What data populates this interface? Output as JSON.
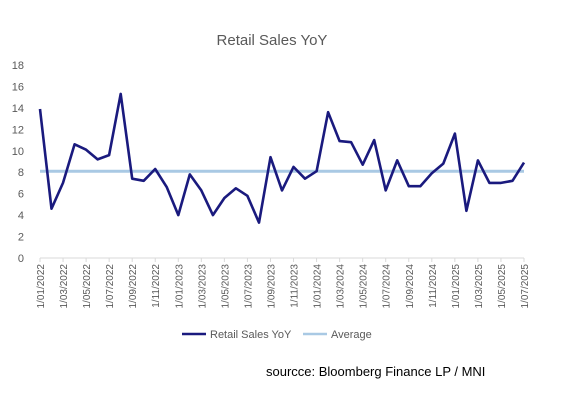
{
  "chart_data": {
    "type": "line",
    "title": "Retail Sales YoY",
    "x": [
      "1/01/2022",
      "1/02/2022",
      "1/03/2022",
      "1/04/2022",
      "1/05/2022",
      "1/06/2022",
      "1/07/2022",
      "1/08/2022",
      "1/09/2022",
      "1/10/2022",
      "1/11/2022",
      "1/12/2022",
      "1/01/2023",
      "1/02/2023",
      "1/03/2023",
      "1/04/2023",
      "1/05/2023",
      "1/06/2023",
      "1/07/2023",
      "1/08/2023",
      "1/09/2023",
      "1/10/2023",
      "1/11/2023",
      "1/12/2023",
      "1/01/2024",
      "1/02/2024",
      "1/03/2024",
      "1/04/2024",
      "1/05/2024",
      "1/06/2024",
      "1/07/2024",
      "1/08/2024",
      "1/09/2024",
      "1/10/2024",
      "1/11/2024",
      "1/12/2024",
      "1/01/2025",
      "1/02/2025",
      "1/03/2025",
      "1/04/2025",
      "1/05/2025",
      "1/06/2025",
      "1/07/2025"
    ],
    "x_tick_labels": [
      "1/01/2022",
      "1/03/2022",
      "1/05/2022",
      "1/07/2022",
      "1/09/2022",
      "1/11/2022",
      "1/01/2023",
      "1/03/2023",
      "1/05/2023",
      "1/07/2023",
      "1/09/2023",
      "1/11/2023",
      "1/01/2024",
      "1/03/2024",
      "1/05/2024",
      "1/07/2024",
      "1/09/2024",
      "1/11/2024",
      "1/01/2025",
      "1/03/2025",
      "1/05/2025",
      "1/07/2025"
    ],
    "y_tick_labels": [
      "0",
      "2",
      "4",
      "6",
      "8",
      "10",
      "12",
      "14",
      "16",
      "18"
    ],
    "ylim": [
      0,
      18
    ],
    "grid": false,
    "legend_position": "bottom",
    "series": [
      {
        "name": "Retail Sales YoY",
        "color": "#1a1a7e",
        "values": [
          13.9,
          4.6,
          7.0,
          10.6,
          10.1,
          9.2,
          9.6,
          15.3,
          7.4,
          7.2,
          8.3,
          6.6,
          4.0,
          7.8,
          6.3,
          4.0,
          5.6,
          6.5,
          5.8,
          3.3,
          9.4,
          6.3,
          8.5,
          7.4,
          8.1,
          13.6,
          10.9,
          10.8,
          8.7,
          11.0,
          6.3,
          9.1,
          6.7,
          6.7,
          7.9,
          8.8,
          11.6,
          4.4,
          9.1,
          7.0,
          7.0,
          7.2,
          8.9
        ]
      },
      {
        "name": "Average",
        "color": "#a9c9e4",
        "values": [
          8.1,
          8.1,
          8.1,
          8.1,
          8.1,
          8.1,
          8.1,
          8.1,
          8.1,
          8.1,
          8.1,
          8.1,
          8.1,
          8.1,
          8.1,
          8.1,
          8.1,
          8.1,
          8.1,
          8.1,
          8.1,
          8.1,
          8.1,
          8.1,
          8.1,
          8.1,
          8.1,
          8.1,
          8.1,
          8.1,
          8.1,
          8.1,
          8.1,
          8.1,
          8.1,
          8.1,
          8.1,
          8.1,
          8.1,
          8.1,
          8.1,
          8.1,
          8.1
        ]
      }
    ]
  },
  "source_note": "sourcce: Bloomberg Finance LP / MNI"
}
